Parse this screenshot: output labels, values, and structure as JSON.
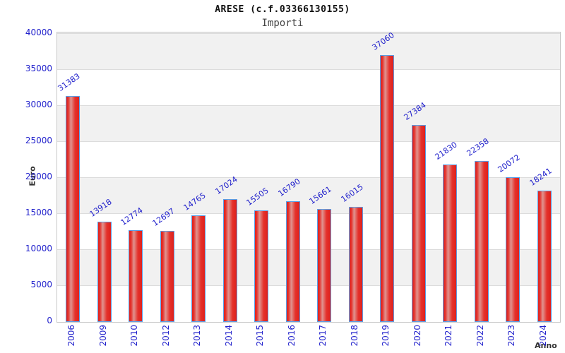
{
  "header": {
    "title": "ARESE (c.f.03366130155)",
    "subtitle": "Importi"
  },
  "chart_data": {
    "type": "bar",
    "title": "ARESE (c.f.03366130155)",
    "subtitle": "Importi",
    "xlabel": "Anno",
    "ylabel": "Euro",
    "categories": [
      "2006",
      "2009",
      "2010",
      "2012",
      "2013",
      "2014",
      "2015",
      "2016",
      "2017",
      "2018",
      "2019",
      "2020",
      "2021",
      "2022",
      "2023",
      "2024"
    ],
    "values": [
      31383,
      13918,
      12774,
      12697,
      14765,
      17024,
      15505,
      16790,
      15661,
      16015,
      37060,
      27384,
      21830,
      22358,
      20072,
      18241
    ],
    "ylim": [
      0,
      40000
    ],
    "yticks": [
      0,
      5000,
      10000,
      15000,
      20000,
      25000,
      30000,
      35000,
      40000
    ],
    "grid": "alternating horizontal bands, light gridlines at each tick",
    "legend": "none",
    "colors": {
      "bar_fill": "#e4322c",
      "bar_highlight": "#e09490",
      "bar_outline": "#59a0e8",
      "label_text": "#2222cc",
      "band_gray": "#f1f1f1",
      "band_white": "#ffffff",
      "axis_label_text": "#333333",
      "plot_border": "#c8c8c8"
    }
  }
}
